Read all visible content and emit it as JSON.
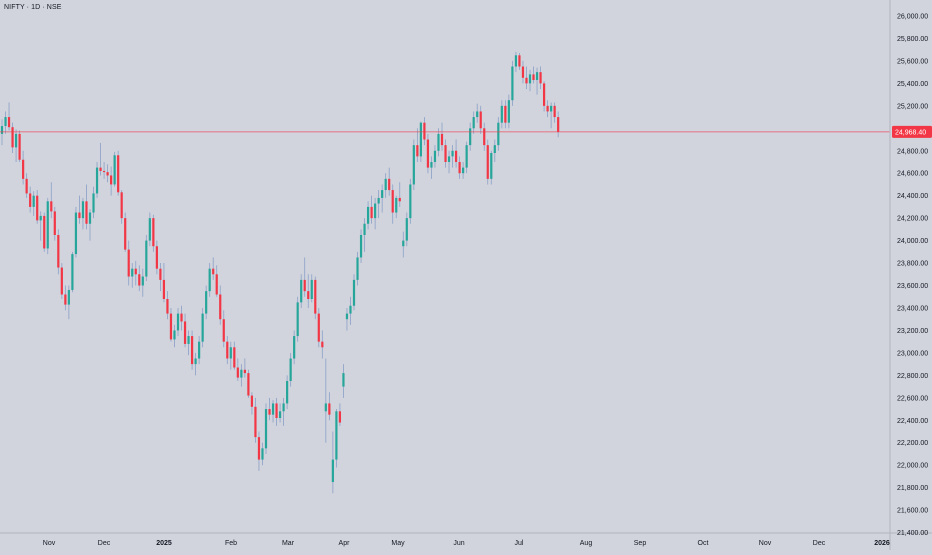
{
  "header": {
    "title": "NIFTY · 1D · NSE"
  },
  "colors": {
    "background": "#d1d4dc",
    "up": "#089981",
    "up_fill": "#26a69a",
    "down": "#f23645",
    "wick": "#8aa0c8",
    "price_line": "#f23645",
    "axis_text": "#131722",
    "last_price_badge": "#f23645"
  },
  "chart_data": {
    "type": "candlestick",
    "symbol": "NIFTY",
    "interval": "1D",
    "exchange": "NSE",
    "y_axis": {
      "range": [
        21400,
        26050
      ],
      "ticks": [
        21400,
        21600,
        21800,
        22000,
        22200,
        22400,
        22600,
        22800,
        23000,
        23200,
        23400,
        23600,
        23800,
        24000,
        24200,
        24400,
        24600,
        24800,
        25000,
        25200,
        25400,
        25600,
        25800,
        26000
      ],
      "tick_labels": [
        "21,400.00",
        "21,600.00",
        "21,800.00",
        "22,000.00",
        "22,200.00",
        "22,400.00",
        "22,600.00",
        "22,800.00",
        "23,000.00",
        "23,200.00",
        "23,400.00",
        "23,600.00",
        "23,800.00",
        "24,000.00",
        "24,200.00",
        "24,400.00",
        "24,600.00",
        "24,800.00",
        "25,000.00",
        "25,200.00",
        "25,400.00",
        "25,600.00",
        "25,800.00",
        "26,000.00"
      ]
    },
    "x_axis": {
      "tick_labels": [
        "Nov",
        "Dec",
        "2025",
        "Feb",
        "Mar",
        "Apr",
        "May",
        "Jun",
        "Jul",
        "Aug",
        "Sep",
        "Oct",
        "Nov",
        "Dec",
        "2026"
      ],
      "bold_labels": [
        "2025",
        "2026"
      ]
    },
    "last_price": 24968.4,
    "last_price_label": "24,968.40",
    "candles": [
      [
        24950,
        25080,
        24850,
        25020
      ],
      [
        25020,
        25150,
        24950,
        25100
      ],
      [
        25100,
        25230,
        24980,
        25010
      ],
      [
        25010,
        25050,
        24780,
        24830
      ],
      [
        24830,
        24990,
        24700,
        24950
      ],
      [
        24950,
        24980,
        24700,
        24720
      ],
      [
        24720,
        24800,
        24500,
        24550
      ],
      [
        24550,
        24600,
        24380,
        24420
      ],
      [
        24420,
        24480,
        24250,
        24300
      ],
      [
        24300,
        24440,
        24220,
        24400
      ],
      [
        24400,
        24450,
        24150,
        24180
      ],
      [
        24180,
        24260,
        24000,
        24220
      ],
      [
        24220,
        24250,
        23900,
        23930
      ],
      [
        23930,
        24380,
        23880,
        24350
      ],
      [
        24350,
        24520,
        24200,
        24260
      ],
      [
        24260,
        24300,
        24000,
        24050
      ],
      [
        24050,
        24100,
        23700,
        23760
      ],
      [
        23760,
        23800,
        23480,
        23520
      ],
      [
        23520,
        23600,
        23380,
        23430
      ],
      [
        23430,
        23600,
        23300,
        23560
      ],
      [
        23560,
        23900,
        23540,
        23880
      ],
      [
        23880,
        24300,
        23850,
        24250
      ],
      [
        24250,
        24400,
        24150,
        24200
      ],
      [
        24200,
        24380,
        24100,
        24350
      ],
      [
        24350,
        24500,
        24100,
        24150
      ],
      [
        24150,
        24280,
        24000,
        24250
      ],
      [
        24250,
        24480,
        24200,
        24420
      ],
      [
        24420,
        24700,
        24380,
        24650
      ],
      [
        24650,
        24870,
        24580,
        24620
      ],
      [
        24620,
        24700,
        24550,
        24610
      ],
      [
        24610,
        24680,
        24520,
        24580
      ],
      [
        24580,
        24660,
        24400,
        24500
      ],
      [
        24500,
        24790,
        24480,
        24760
      ],
      [
        24760,
        24800,
        24400,
        24430
      ],
      [
        24430,
        24450,
        24150,
        24200
      ],
      [
        24200,
        24250,
        23900,
        23920
      ],
      [
        23920,
        24000,
        23600,
        23680
      ],
      [
        23680,
        23800,
        23580,
        23750
      ],
      [
        23750,
        23820,
        23600,
        23700
      ],
      [
        23700,
        23780,
        23550,
        23600
      ],
      [
        23600,
        23750,
        23500,
        23680
      ],
      [
        23680,
        24050,
        23640,
        24000
      ],
      [
        24000,
        24250,
        23950,
        24200
      ],
      [
        24200,
        24230,
        23900,
        23950
      ],
      [
        23950,
        24000,
        23700,
        23750
      ],
      [
        23750,
        23800,
        23550,
        23650
      ],
      [
        23650,
        23800,
        23450,
        23480
      ],
      [
        23480,
        23550,
        23300,
        23350
      ],
      [
        23350,
        23400,
        23100,
        23120
      ],
      [
        23120,
        23250,
        23050,
        23200
      ],
      [
        23200,
        23400,
        23150,
        23350
      ],
      [
        23350,
        23420,
        23200,
        23280
      ],
      [
        23280,
        23350,
        23050,
        23080
      ],
      [
        23080,
        23200,
        22980,
        23150
      ],
      [
        23150,
        23200,
        22850,
        22900
      ],
      [
        22900,
        23000,
        22800,
        22950
      ],
      [
        22950,
        23150,
        22900,
        23100
      ],
      [
        23100,
        23400,
        23050,
        23350
      ],
      [
        23350,
        23600,
        23300,
        23550
      ],
      [
        23550,
        23800,
        23500,
        23750
      ],
      [
        23750,
        23850,
        23650,
        23700
      ],
      [
        23700,
        23780,
        23500,
        23520
      ],
      [
        23520,
        23600,
        23250,
        23300
      ],
      [
        23300,
        23380,
        23050,
        23100
      ],
      [
        23100,
        23150,
        22900,
        22950
      ],
      [
        22950,
        23100,
        22850,
        23050
      ],
      [
        23050,
        23100,
        22850,
        22870
      ],
      [
        22870,
        22950,
        22750,
        22780
      ],
      [
        22780,
        22900,
        22700,
        22850
      ],
      [
        22850,
        22950,
        22780,
        22820
      ],
      [
        22820,
        22850,
        22600,
        22620
      ],
      [
        22620,
        22650,
        22450,
        22520
      ],
      [
        22520,
        22600,
        22200,
        22250
      ],
      [
        22250,
        22300,
        21950,
        22050
      ],
      [
        22050,
        22200,
        22000,
        22150
      ],
      [
        22150,
        22550,
        22100,
        22500
      ],
      [
        22500,
        22600,
        22400,
        22450
      ],
      [
        22450,
        22580,
        22380,
        22550
      ],
      [
        22550,
        22600,
        22350,
        22420
      ],
      [
        22420,
        22550,
        22380,
        22480
      ],
      [
        22480,
        22600,
        22350,
        22550
      ],
      [
        22550,
        22800,
        22500,
        22750
      ],
      [
        22750,
        23000,
        22700,
        22950
      ],
      [
        22950,
        23200,
        22900,
        23150
      ],
      [
        23150,
        23500,
        23100,
        23450
      ],
      [
        23450,
        23700,
        23400,
        23650
      ],
      [
        23650,
        23850,
        23500,
        23550
      ],
      [
        23550,
        23700,
        23400,
        23480
      ],
      [
        23480,
        23700,
        23450,
        23650
      ],
      [
        23650,
        23680,
        23300,
        23350
      ],
      [
        23350,
        23400,
        23050,
        23100
      ],
      [
        23100,
        23200,
        22950,
        23050
      ],
      [
        22480,
        22950,
        22200,
        22550
      ],
      [
        22550,
        22650,
        22400,
        22450
      ],
      [
        21850,
        22300,
        21750,
        22050
      ],
      [
        22050,
        22500,
        21980,
        22480
      ],
      [
        22480,
        22550,
        22350,
        22380
      ],
      [
        22700,
        22900,
        22600,
        22820
      ],
      [
        23300,
        23400,
        23200,
        23350
      ],
      [
        23350,
        23500,
        23250,
        23420
      ],
      [
        23420,
        23700,
        23380,
        23650
      ],
      [
        23650,
        23900,
        23600,
        23850
      ],
      [
        23850,
        24100,
        23800,
        24050
      ],
      [
        24050,
        24200,
        23900,
        24150
      ],
      [
        24150,
        24350,
        24100,
        24300
      ],
      [
        24300,
        24400,
        24150,
        24200
      ],
      [
        24200,
        24380,
        24100,
        24330
      ],
      [
        24330,
        24450,
        24200,
        24380
      ],
      [
        24380,
        24500,
        24250,
        24450
      ],
      [
        24450,
        24600,
        24380,
        24550
      ],
      [
        24550,
        24650,
        24400,
        24450
      ],
      [
        24450,
        24500,
        24150,
        24250
      ],
      [
        24250,
        24400,
        24200,
        24380
      ],
      [
        24380,
        24520,
        24300,
        24350
      ],
      [
        23950,
        24080,
        23850,
        24000
      ],
      [
        24000,
        24250,
        23950,
        24200
      ],
      [
        24200,
        24550,
        24150,
        24500
      ],
      [
        24500,
        24900,
        24450,
        24850
      ],
      [
        24850,
        25000,
        24700,
        24750
      ],
      [
        24750,
        25060,
        24700,
        25050
      ],
      [
        25050,
        25100,
        24850,
        24900
      ],
      [
        24900,
        24950,
        24600,
        24650
      ],
      [
        24650,
        24750,
        24550,
        24700
      ],
      [
        24700,
        24850,
        24650,
        24800
      ],
      [
        24800,
        25000,
        24750,
        24950
      ],
      [
        24950,
        25050,
        24800,
        24850
      ],
      [
        24850,
        24900,
        24650,
        24700
      ],
      [
        24700,
        24800,
        24600,
        24750
      ],
      [
        24750,
        24850,
        24650,
        24800
      ],
      [
        24800,
        24900,
        24650,
        24700
      ],
      [
        24700,
        24750,
        24550,
        24600
      ],
      [
        24600,
        24700,
        24550,
        24650
      ],
      [
        24650,
        24880,
        24600,
        24850
      ],
      [
        24850,
        25050,
        24800,
        25000
      ],
      [
        25000,
        25150,
        24950,
        25100
      ],
      [
        25100,
        25220,
        25050,
        25150
      ],
      [
        25150,
        25200,
        24950,
        25000
      ],
      [
        25000,
        25050,
        24800,
        24850
      ],
      [
        24850,
        24900,
        24500,
        24550
      ],
      [
        24550,
        24800,
        24500,
        24780
      ],
      [
        24780,
        24900,
        24700,
        24850
      ],
      [
        24850,
        25100,
        24800,
        25050
      ],
      [
        25050,
        25250,
        25000,
        25200
      ],
      [
        25200,
        25250,
        25000,
        25050
      ],
      [
        25050,
        25300,
        25000,
        25250
      ],
      [
        25250,
        25600,
        25200,
        25550
      ],
      [
        25550,
        25680,
        25500,
        25650
      ],
      [
        25650,
        25670,
        25520,
        25550
      ],
      [
        25550,
        25600,
        25400,
        25450
      ],
      [
        25450,
        25550,
        25350,
        25400
      ],
      [
        25400,
        25520,
        25330,
        25480
      ],
      [
        25480,
        25550,
        25400,
        25430
      ],
      [
        25430,
        25540,
        25300,
        25500
      ],
      [
        25500,
        25550,
        25350,
        25400
      ],
      [
        25400,
        25420,
        25150,
        25200
      ],
      [
        25200,
        25250,
        25100,
        25150
      ],
      [
        25150,
        25230,
        25000,
        25200
      ],
      [
        25200,
        25230,
        25050,
        25100
      ],
      [
        25100,
        25150,
        24920,
        24968
      ]
    ]
  }
}
